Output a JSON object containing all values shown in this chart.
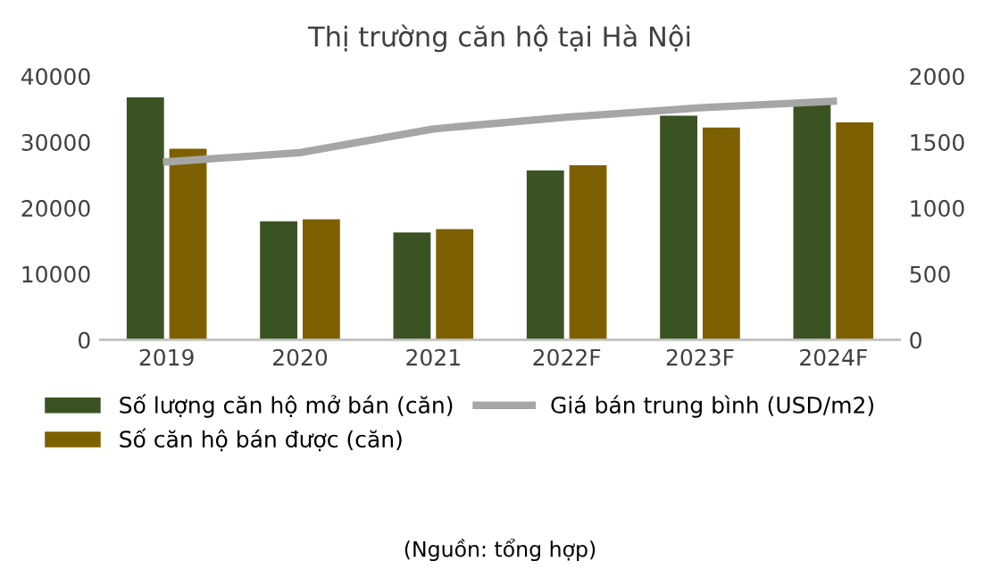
{
  "chart_data": {
    "type": "bar",
    "title": "Thị trường căn hộ tại Hà Nội",
    "categories": [
      "2019",
      "2020",
      "2021",
      "2022F",
      "2023F",
      "2024F"
    ],
    "series": [
      {
        "name": "Số lượng căn hộ mở bán (căn)",
        "color": "#3b5323",
        "values": [
          36800,
          18000,
          16300,
          25700,
          34000,
          36000
        ]
      },
      {
        "name": "Số căn hộ bán được (căn)",
        "color": "#7f6000",
        "values": [
          29000,
          18300,
          16800,
          26500,
          32200,
          33000
        ]
      },
      {
        "name": "Giá bán trung bình (USD/m2)",
        "type": "line",
        "axis": "y2",
        "color": "#a6a6a6",
        "values": [
          1350,
          1420,
          1600,
          1690,
          1760,
          1810
        ]
      }
    ],
    "ylim": [
      0,
      40000
    ],
    "yticks": [
      0,
      10000,
      20000,
      30000,
      40000
    ],
    "y2lim": [
      0,
      2000
    ],
    "y2ticks": [
      0,
      500,
      1000,
      1500,
      2000
    ],
    "grid": false,
    "legend": "bottom",
    "marker": "none",
    "annotations": [
      "(Nguồn: tổng hợp)"
    ]
  }
}
